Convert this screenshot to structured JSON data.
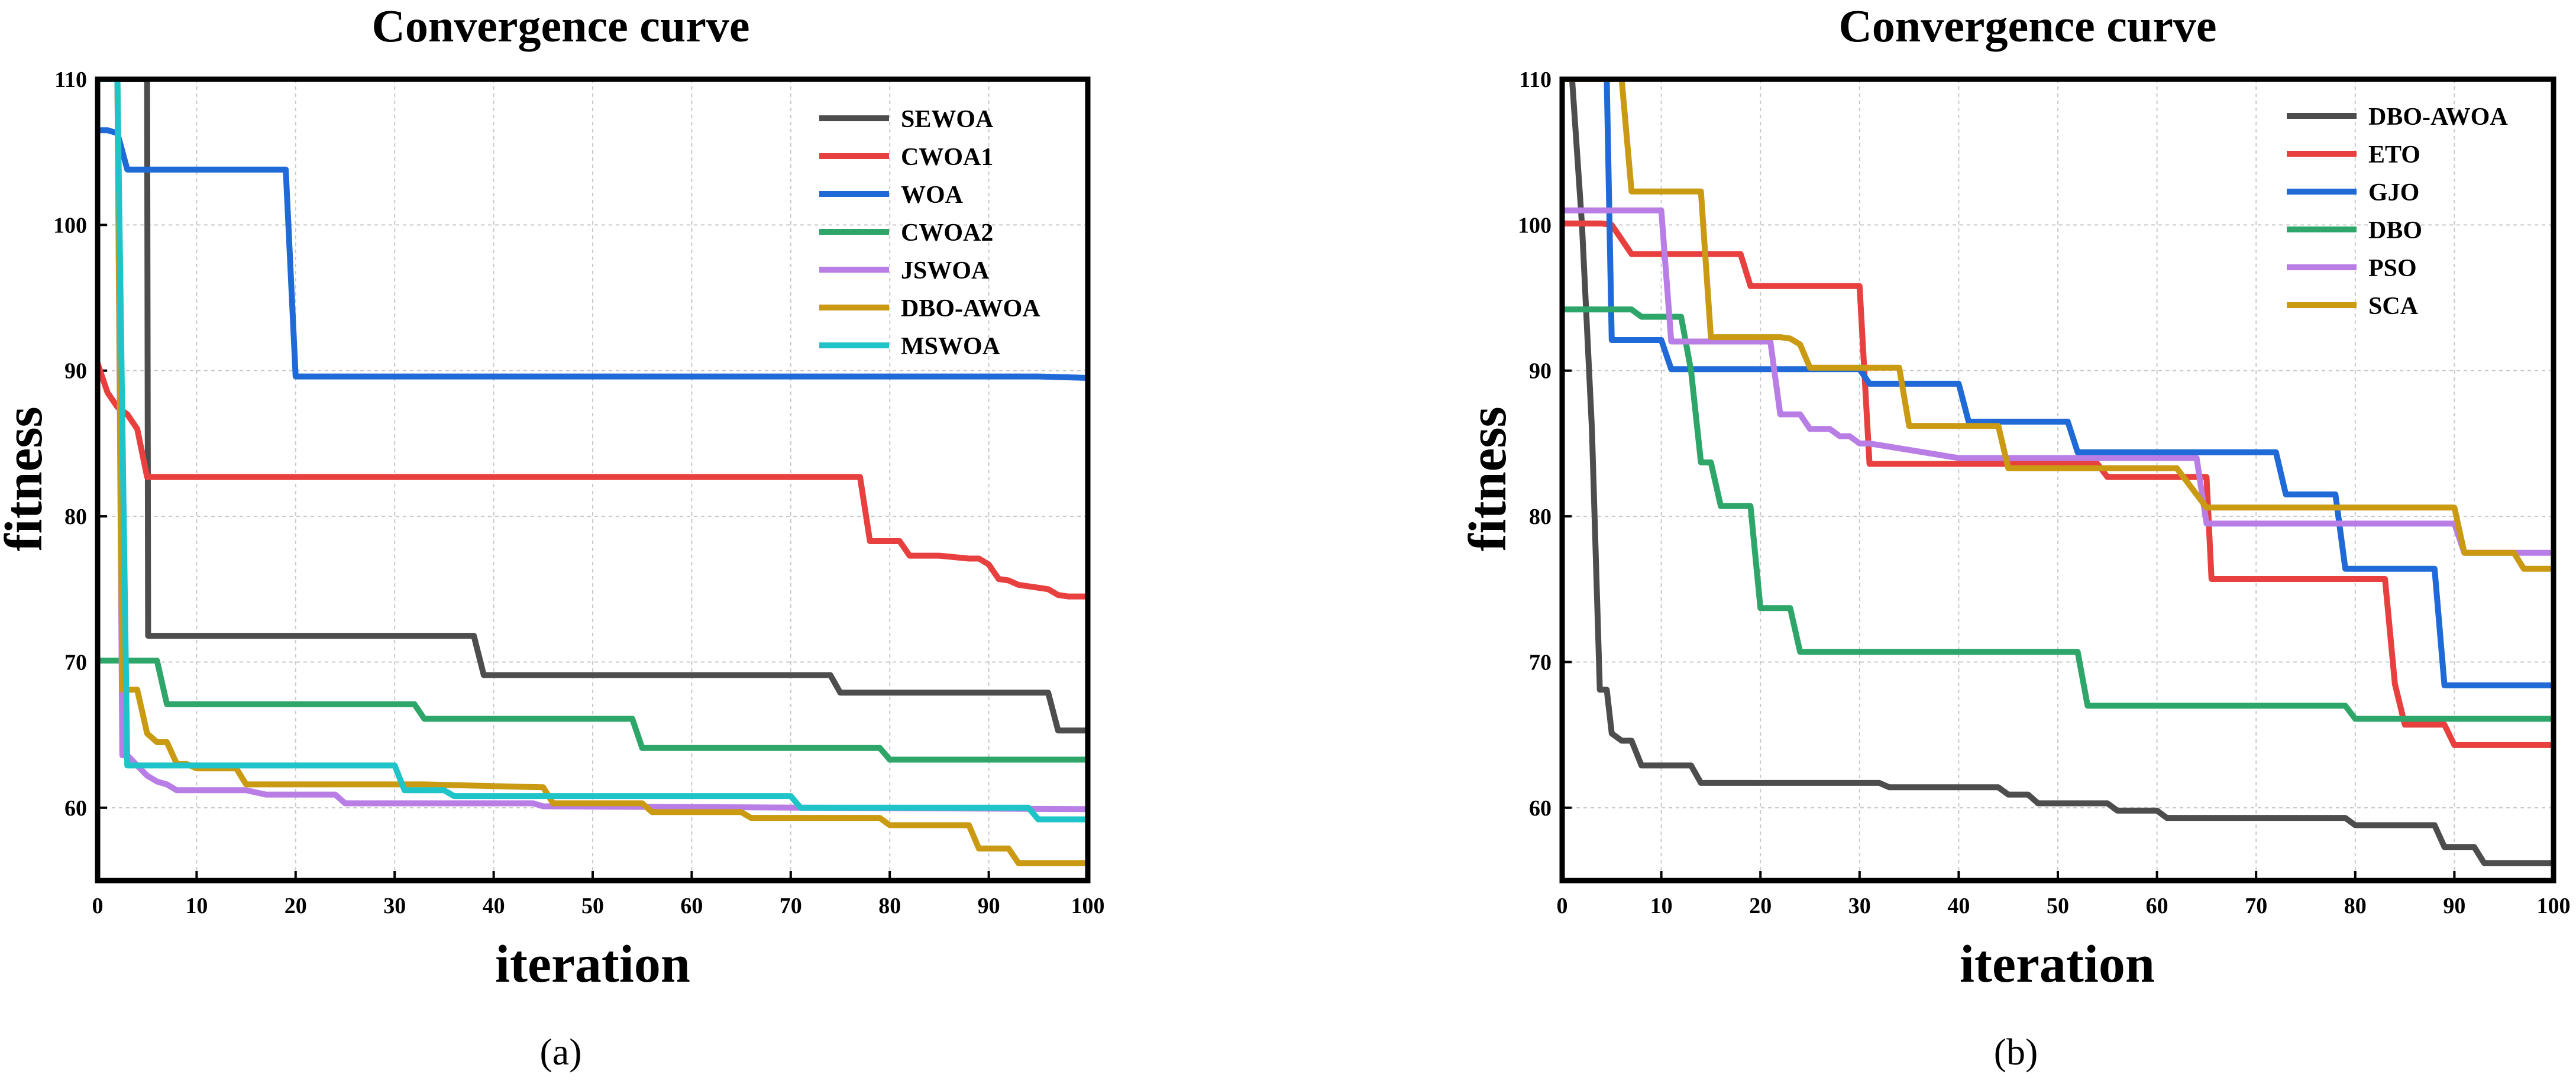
{
  "chart_data": [
    {
      "type": "line",
      "panel_label": "(a)",
      "title": "Convergence curve",
      "xlabel": "iteration",
      "ylabel": "fitness",
      "xlim": [
        0,
        100
      ],
      "ylim": [
        55,
        110
      ],
      "xticks": [
        0,
        10,
        20,
        30,
        40,
        50,
        60,
        70,
        80,
        90,
        100
      ],
      "yticks": [
        60,
        70,
        80,
        90,
        100,
        110
      ],
      "grid": true,
      "legend_position": "top-right",
      "series": [
        {
          "name": "SEWOA",
          "color": "#4d4d4d",
          "x": [
            0,
            4,
            4.2,
            5,
            5.1,
            38,
            39,
            74,
            75,
            96,
            97,
            100
          ],
          "y": [
            110,
            110,
            110,
            110,
            71.8,
            71.8,
            69.1,
            69.1,
            67.9,
            67.9,
            65.3,
            65.3
          ]
        },
        {
          "name": "CWOA1",
          "color": "#e8403f",
          "x": [
            0,
            1,
            2,
            3,
            4,
            5,
            77,
            78,
            81,
            82,
            84,
            85,
            88,
            89,
            90,
            91,
            92,
            93,
            95,
            96,
            97,
            98,
            100
          ],
          "y": [
            90.5,
            88.5,
            87.5,
            87,
            86,
            82.7,
            82.7,
            78.3,
            78.3,
            77.3,
            77.3,
            77.3,
            77.1,
            77.1,
            76.7,
            75.7,
            75.6,
            75.3,
            75.1,
            75,
            74.6,
            74.5,
            74.5
          ]
        },
        {
          "name": "WOA",
          "color": "#1f6ad6",
          "x": [
            0,
            1,
            2,
            3,
            4,
            19,
            20,
            95,
            100
          ],
          "y": [
            106.5,
            106.5,
            106.3,
            103.8,
            103.8,
            103.8,
            89.6,
            89.6,
            89.5
          ]
        },
        {
          "name": "CWOA2",
          "color": "#2ea66a",
          "x": [
            0,
            1,
            6,
            7,
            32,
            33,
            54,
            55,
            79,
            80,
            100
          ],
          "y": [
            70.1,
            70.1,
            70.1,
            67.1,
            67.1,
            66.1,
            66.1,
            64.1,
            64.1,
            63.3,
            63.3
          ]
        },
        {
          "name": "JSWOA",
          "color": "#b97de6",
          "x": [
            0,
            2,
            2.5,
            3,
            5,
            6,
            7,
            8,
            15,
            17,
            24,
            25,
            44,
            45,
            100
          ],
          "y": [
            110,
            110,
            63.6,
            63.6,
            62.2,
            61.8,
            61.6,
            61.2,
            61.2,
            60.9,
            60.9,
            60.3,
            60.3,
            60.1,
            59.9
          ]
        },
        {
          "name": "DBO-AWOA",
          "color": "#c99a12",
          "x": [
            0,
            2,
            2.5,
            4,
            5,
            6,
            7,
            8,
            9,
            10,
            14,
            15,
            33,
            45,
            46,
            55,
            56,
            65,
            66,
            79,
            80,
            88,
            89,
            92,
            93,
            100
          ],
          "y": [
            110,
            110,
            68.1,
            68.1,
            65.1,
            64.5,
            64.5,
            63,
            63,
            62.7,
            62.7,
            61.6,
            61.6,
            61.4,
            60.3,
            60.3,
            59.7,
            59.7,
            59.3,
            59.3,
            58.8,
            58.8,
            57.2,
            57.2,
            56.2,
            56.2
          ]
        },
        {
          "name": "MSWOA",
          "color": "#1fc4c9",
          "x": [
            0,
            1,
            2,
            3,
            7,
            8,
            30,
            31,
            35,
            36,
            70,
            71,
            94,
            95,
            100
          ],
          "y": [
            110,
            110,
            110,
            62.9,
            62.9,
            62.9,
            62.9,
            61.2,
            61.2,
            60.8,
            60.8,
            60,
            60,
            59.2,
            59.2
          ]
        }
      ]
    },
    {
      "type": "line",
      "panel_label": "(b)",
      "title": "Convergence curve",
      "xlabel": "iteration",
      "ylabel": "fitness",
      "xlim": [
        0,
        100
      ],
      "ylim": [
        55,
        110
      ],
      "xticks": [
        0,
        10,
        20,
        30,
        40,
        50,
        60,
        70,
        80,
        90,
        100
      ],
      "yticks": [
        60,
        70,
        80,
        90,
        100,
        110
      ],
      "grid": true,
      "legend_position": "top-right",
      "series": [
        {
          "name": "DBO-AWOA",
          "color": "#4d4d4d",
          "x": [
            0,
            1,
            2,
            3,
            3.8,
            4.5,
            5,
            6,
            7,
            8,
            13,
            14,
            32,
            33,
            44,
            45,
            47,
            48,
            55,
            56,
            60,
            61,
            65,
            79,
            80,
            88,
            89,
            92,
            93,
            100
          ],
          "y": [
            110,
            110,
            100,
            86,
            68.1,
            68.1,
            65.1,
            64.6,
            64.6,
            62.9,
            62.9,
            61.7,
            61.7,
            61.4,
            61.4,
            60.9,
            60.9,
            60.3,
            60.3,
            59.8,
            59.8,
            59.3,
            59.3,
            59.3,
            58.8,
            58.8,
            57.3,
            57.3,
            56.2,
            56.2
          ]
        },
        {
          "name": "ETO",
          "color": "#e8403f",
          "x": [
            0,
            3,
            4,
            5,
            6,
            7,
            8,
            9,
            18,
            19,
            30,
            31,
            46,
            47,
            54,
            55,
            65,
            65.5,
            83,
            84,
            85,
            89,
            90,
            100
          ],
          "y": [
            100.1,
            100.1,
            100.1,
            100,
            99,
            98,
            98,
            98,
            98,
            95.8,
            95.8,
            83.6,
            83.6,
            83.6,
            83.6,
            82.7,
            82.7,
            75.7,
            75.7,
            68.5,
            65.7,
            65.7,
            64.3,
            64.3
          ]
        },
        {
          "name": "GJO",
          "color": "#1f6ad6",
          "x": [
            0,
            4,
            4.5,
            5,
            10,
            11,
            30,
            31,
            40,
            41,
            51,
            52,
            72,
            73,
            78,
            79,
            88,
            89,
            100
          ],
          "y": [
            110,
            110,
            110,
            92.1,
            92.1,
            90.1,
            90.1,
            89.1,
            89.1,
            86.5,
            86.5,
            84.4,
            84.4,
            81.5,
            81.5,
            76.4,
            76.4,
            68.4,
            68.4
          ]
        },
        {
          "name": "DBO",
          "color": "#2ea66a",
          "x": [
            0,
            6,
            7,
            8,
            12,
            13,
            14,
            15,
            16,
            17,
            19,
            20,
            23,
            24,
            25,
            26,
            52,
            53,
            79,
            80,
            100
          ],
          "y": [
            94.2,
            94.2,
            94.2,
            93.7,
            93.7,
            90,
            83.7,
            83.7,
            80.7,
            80.7,
            80.7,
            73.7,
            73.7,
            70.7,
            70.7,
            70.7,
            70.7,
            67,
            67,
            66.1,
            66.1
          ]
        },
        {
          "name": "PSO",
          "color": "#b97de6",
          "x": [
            0,
            9,
            10,
            11,
            21,
            22,
            24,
            25,
            26,
            27,
            28,
            29,
            30,
            31,
            40,
            41,
            64,
            65,
            90,
            91,
            100
          ],
          "y": [
            101,
            101,
            101,
            92,
            92,
            87,
            87,
            86,
            86,
            86,
            85.5,
            85.5,
            85,
            85,
            84,
            84,
            84,
            79.5,
            79.5,
            77.5,
            77.5
          ]
        },
        {
          "name": "SCA",
          "color": "#c99a12",
          "x": [
            0,
            6,
            7,
            14,
            15,
            22,
            23,
            24,
            25,
            33,
            34,
            35,
            36,
            44,
            45,
            61,
            62,
            65,
            66,
            90,
            91,
            96,
            97,
            100
          ],
          "y": [
            110,
            110,
            102.3,
            102.3,
            92.3,
            92.3,
            92.2,
            91.8,
            90.2,
            90.2,
            90.2,
            86.2,
            86.2,
            86.2,
            83.3,
            83.3,
            83.3,
            80.6,
            80.6,
            80.6,
            77.5,
            77.5,
            76.4,
            76.4
          ]
        }
      ]
    }
  ]
}
